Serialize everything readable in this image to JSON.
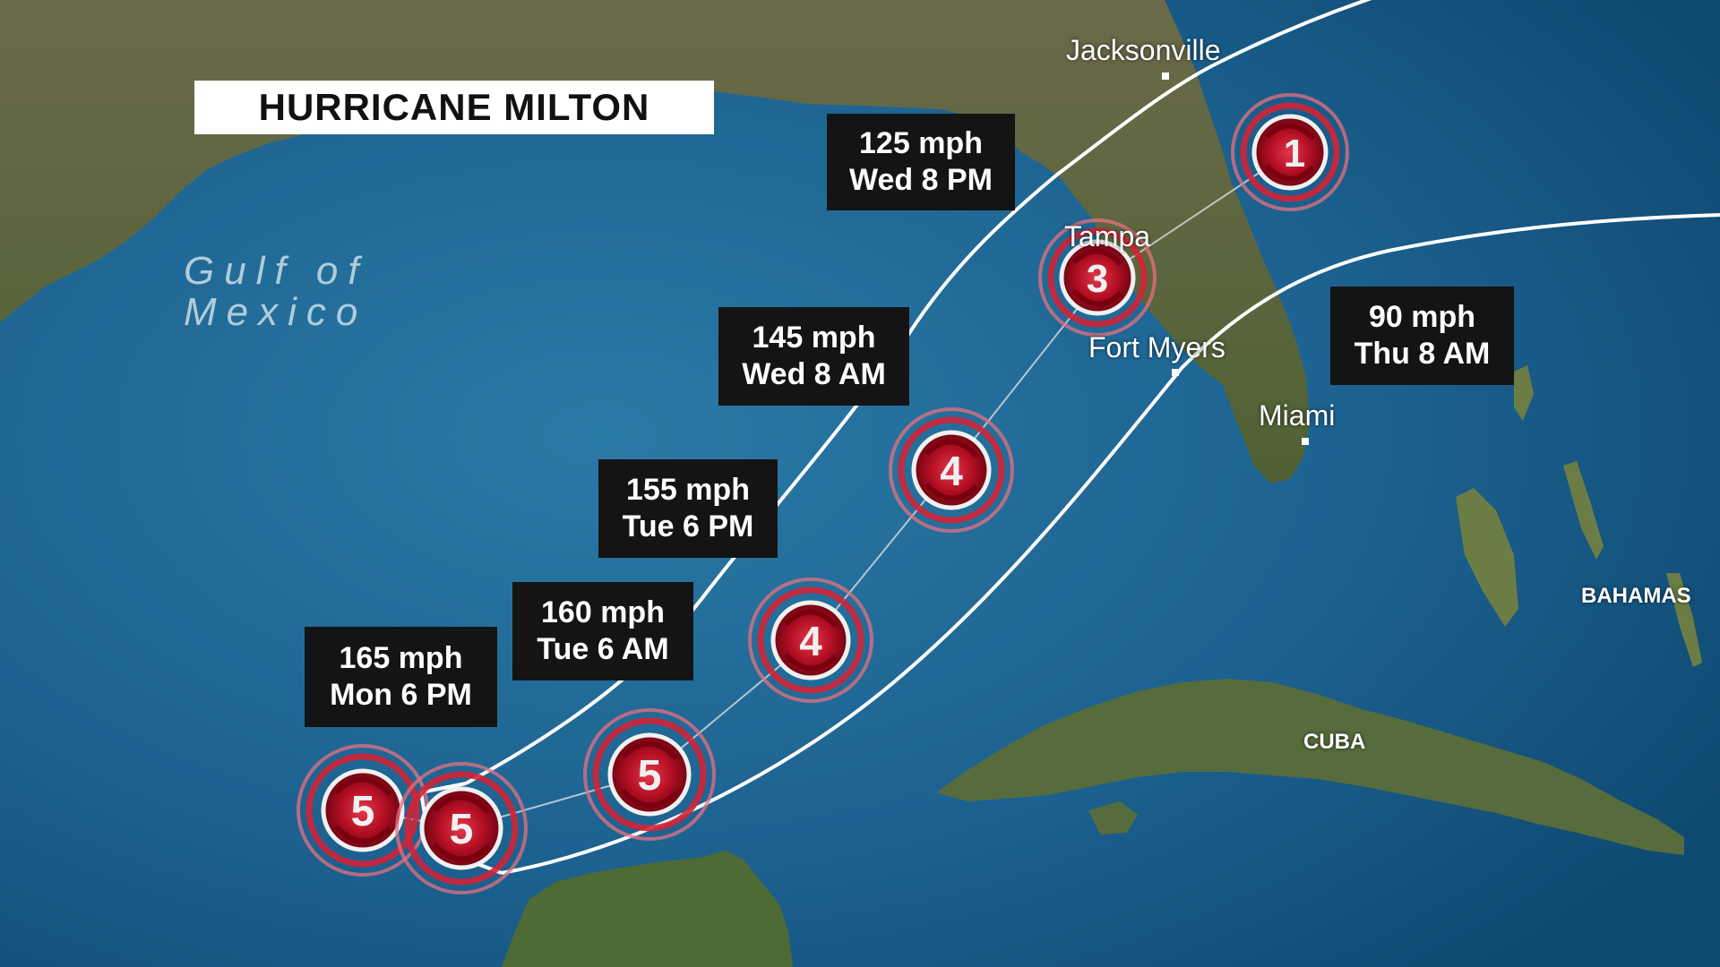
{
  "title": "HURRICANE MILTON",
  "water_label": [
    "Gulf of",
    "Mexico"
  ],
  "cities": {
    "jacksonville": "Jacksonville",
    "tampa": "Tampa",
    "fort_myers": "Fort Myers",
    "miami": "Miami"
  },
  "countries": {
    "cuba": "CUBA",
    "bahamas": "BAHAMAS"
  },
  "forecast_points": [
    {
      "category": "5",
      "speed": "165 mph",
      "time": "Mon 6 PM"
    },
    {
      "category": "5",
      "speed": "160 mph",
      "time": "Tue 6 AM"
    },
    {
      "category": "5",
      "speed": "155 mph",
      "time": "Tue 6 PM"
    },
    {
      "category": "4",
      "speed": "145 mph",
      "time": "Wed 8 AM"
    },
    {
      "category": "4",
      "speed": "125 mph",
      "time": "Wed 8 PM"
    },
    {
      "category": "3",
      "speed": "90 mph",
      "time": "Thu 8 AM"
    },
    {
      "category": "1"
    }
  ],
  "colors": {
    "water": "#1f6a94",
    "land": "#5d6a3f",
    "storm_red": "#c8102e",
    "cone_line": "#ffffff",
    "label_bg": "#141414"
  },
  "icons": {
    "storm_symbol": "hurricane-icon"
  }
}
